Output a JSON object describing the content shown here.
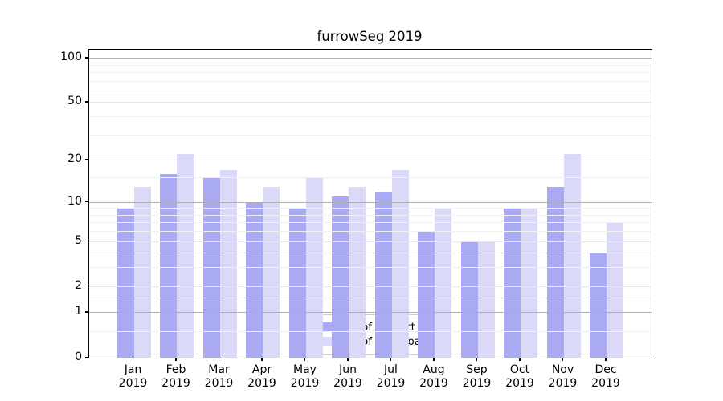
{
  "title": "furrowSeg 2019",
  "chart_data": {
    "type": "bar",
    "categories": [
      "Jan",
      "Feb",
      "Mar",
      "Apr",
      "May",
      "Jun",
      "Jul",
      "Aug",
      "Sep",
      "Oct",
      "Nov",
      "Dec"
    ],
    "year_label": "2019",
    "series": [
      {
        "name": "Nb of distinct IPs",
        "color": "#aaaaf2",
        "values": [
          9,
          16,
          15,
          10,
          9,
          11,
          12,
          6,
          5,
          9,
          13,
          4
        ]
      },
      {
        "name": "Nb of downloads",
        "color": "#dadaf8",
        "values": [
          13,
          22,
          17,
          13,
          15,
          13,
          17,
          9,
          5,
          9,
          22,
          7
        ]
      }
    ],
    "yscale": "log1p",
    "ylim": [
      0,
      113.6
    ],
    "y_major_ticks": [
      0,
      1,
      2,
      5,
      10,
      20,
      50,
      100
    ],
    "y_decade_ticks": [
      1,
      10,
      100
    ],
    "y_minor_ticks": [
      0.5,
      1.5,
      3,
      4,
      6,
      7,
      8,
      9,
      15,
      30,
      40,
      60,
      70,
      80,
      90
    ],
    "grid": true,
    "legend_position": "lower center"
  },
  "colors": {
    "grid_decade": "#b0b0b0",
    "grid_major": "#e7e7e7",
    "grid_minor": "#f1f1f1"
  }
}
